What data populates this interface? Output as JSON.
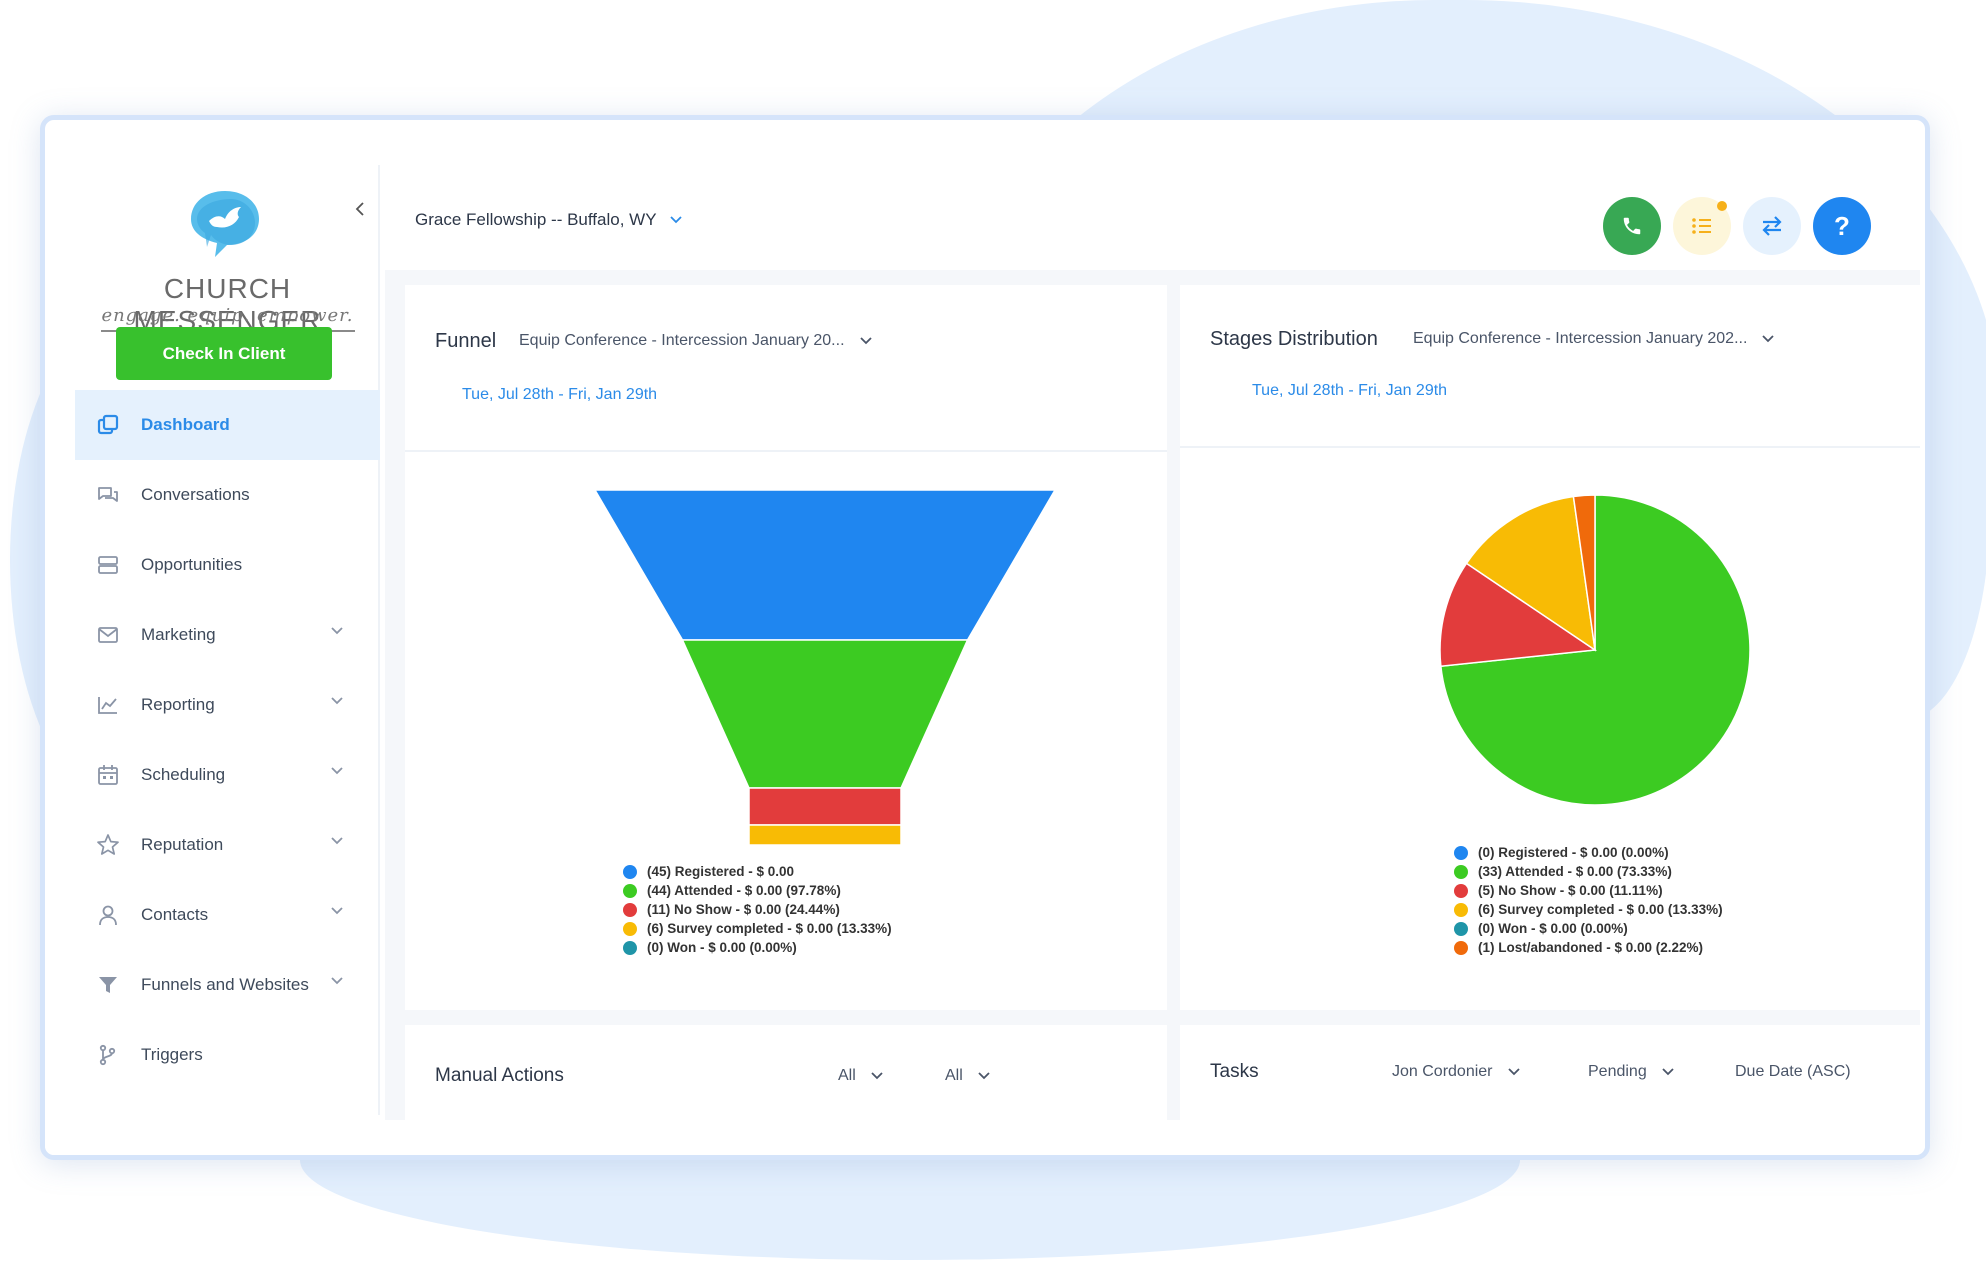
{
  "app": {
    "brand_name": "CHURCH MESSENGER",
    "brand_tagline": "engage. equip. empower.",
    "checkin_label": "Check In Client"
  },
  "sidebar": {
    "items": [
      {
        "label": "Dashboard",
        "icon": "dashboard-icon",
        "active": true
      },
      {
        "label": "Conversations",
        "icon": "chat-icon"
      },
      {
        "label": "Opportunities",
        "icon": "layers-icon"
      },
      {
        "label": "Marketing",
        "icon": "mail-icon",
        "expandable": true
      },
      {
        "label": "Reporting",
        "icon": "chart-icon",
        "expandable": true
      },
      {
        "label": "Scheduling",
        "icon": "calendar-icon",
        "expandable": true
      },
      {
        "label": "Reputation",
        "icon": "star-icon",
        "expandable": true
      },
      {
        "label": "Contacts",
        "icon": "user-icon",
        "expandable": true
      },
      {
        "label": "Funnels and Websites",
        "icon": "filter-icon",
        "expandable": true
      },
      {
        "label": "Triggers",
        "icon": "branch-icon"
      }
    ]
  },
  "header": {
    "location": "Grace Fellowship -- Buffalo, WY"
  },
  "colors": {
    "blue": "#1f86f0",
    "green": "#3ccb22",
    "red": "#e23c3c",
    "yellow": "#f8bb05",
    "teal": "#1f95a8",
    "orange": "#f06a0b"
  },
  "funnel_card": {
    "title": "Funnel",
    "pipeline": "Equip Conference - Intercession January 20...",
    "date_range": "Tue, Jul 28th - Fri, Jan 29th",
    "legend": [
      "(45) Registered - $ 0.00",
      "(44) Attended - $ 0.00 (97.78%)",
      "(11) No Show - $ 0.00 (24.44%)",
      "(6) Survey completed - $ 0.00 (13.33%)",
      "(0) Won - $ 0.00 (0.00%)"
    ]
  },
  "stages_card": {
    "title": "Stages Distribution",
    "pipeline": "Equip Conference - Intercession January 202...",
    "date_range": "Tue, Jul 28th - Fri, Jan 29th",
    "legend": [
      "(0) Registered - $ 0.00 (0.00%)",
      "(33) Attended - $ 0.00 (73.33%)",
      "(5) No Show - $ 0.00 (11.11%)",
      "(6) Survey completed - $ 0.00 (13.33%)",
      "(0) Won - $ 0.00 (0.00%)",
      "(1) Lost/abandoned - $ 0.00 (2.22%)"
    ]
  },
  "manual_card": {
    "title": "Manual Actions",
    "filter1": "All",
    "filter2": "All"
  },
  "tasks_card": {
    "title": "Tasks",
    "assignee": "Jon Cordonier",
    "status": "Pending",
    "sort": "Due Date (ASC)"
  },
  "chart_data": [
    {
      "type": "funnel",
      "categories": [
        "Registered",
        "Attended",
        "No Show",
        "Survey completed",
        "Won"
      ],
      "values": [
        45,
        44,
        11,
        6,
        0
      ]
    },
    {
      "type": "pie",
      "categories": [
        "Registered",
        "Attended",
        "No Show",
        "Survey completed",
        "Won",
        "Lost/abandoned"
      ],
      "values": [
        0,
        33,
        5,
        6,
        0,
        1
      ],
      "percent": [
        0.0,
        73.33,
        11.11,
        13.33,
        0.0,
        2.22
      ]
    }
  ]
}
